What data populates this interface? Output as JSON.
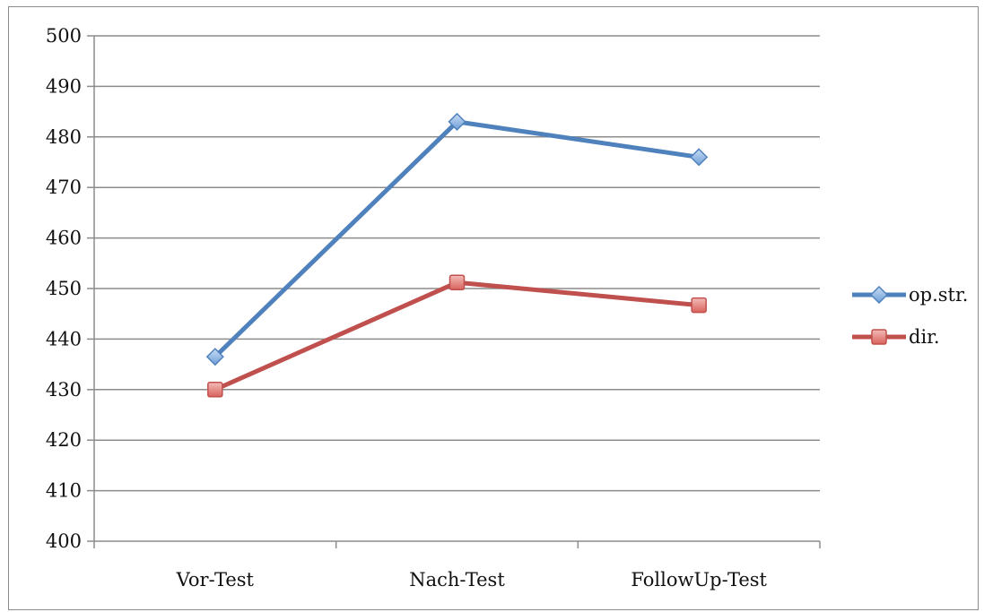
{
  "chart_data": {
    "type": "line",
    "title": "",
    "xlabel": "",
    "ylabel": "",
    "categories": [
      "Vor-Test",
      "Nach-Test",
      "FollowUp-Test"
    ],
    "ylim": [
      400,
      500
    ],
    "yticks": [
      "400",
      "410",
      "420",
      "430",
      "440",
      "450",
      "460",
      "470",
      "480",
      "490",
      "500"
    ],
    "grid": true,
    "legend_position": "right",
    "series": [
      {
        "name": "op.str.",
        "values": [
          436.5,
          483,
          476
        ],
        "color": "#4f81bd",
        "marker": "diamond"
      },
      {
        "name": "dir.",
        "values": [
          430,
          451.2,
          446.7
        ],
        "color": "#c0504d",
        "marker": "square"
      }
    ]
  }
}
